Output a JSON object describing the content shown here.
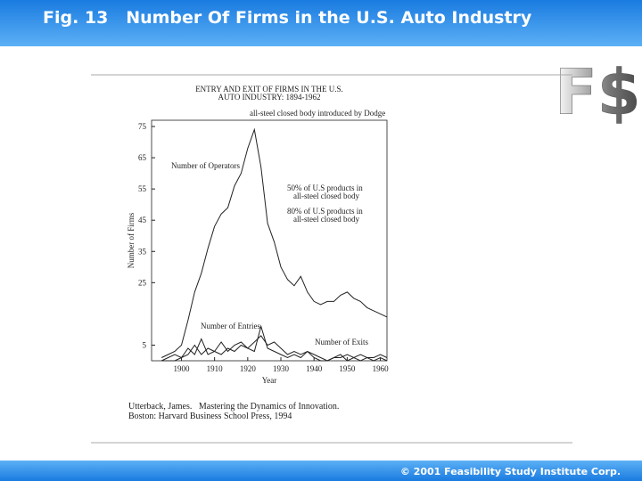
{
  "header": {
    "title": "Fig. 13   Number Of Firms in the U.S. Auto Industry",
    "logo": "F$I"
  },
  "footer": {
    "copyright": "© 2001 Feasibility Study Institute Corp."
  },
  "chart_data": {
    "type": "line",
    "title": [
      "ENTRY AND EXIT OF FIRMS IN THE U.S.",
      "AUTO INDUSTRY: 1894-1962"
    ],
    "x_label": "Year",
    "y_label": "Number of Firms",
    "x": [
      1894,
      1896,
      1898,
      1900,
      1902,
      1904,
      1906,
      1908,
      1910,
      1912,
      1914,
      1916,
      1918,
      1920,
      1922,
      1924,
      1926,
      1928,
      1930,
      1932,
      1934,
      1936,
      1938,
      1940,
      1942,
      1944,
      1946,
      1948,
      1950,
      1952,
      1954,
      1956,
      1958,
      1960,
      1962
    ],
    "series": [
      {
        "name": "Number of Operators",
        "color": "#222222",
        "values": [
          1,
          2,
          3,
          5,
          13,
          22,
          28,
          36,
          43,
          47,
          49,
          56,
          60,
          68,
          74,
          62,
          44,
          38,
          30,
          26,
          24,
          27,
          22,
          19,
          18,
          19,
          19,
          21,
          22,
          20,
          19,
          17,
          16,
          15,
          14
        ]
      },
      {
        "name": "Number of Entries",
        "color": "#222222",
        "values": [
          0,
          1,
          2,
          1,
          4,
          2,
          7,
          2,
          3,
          6,
          3,
          5,
          6,
          4,
          3,
          11,
          4,
          3,
          2,
          1,
          2,
          1,
          3,
          1,
          0,
          0,
          1,
          2,
          0,
          1,
          0,
          1,
          0,
          1,
          0
        ]
      },
      {
        "name": "Number of Exits",
        "color": "#222222",
        "values": [
          0,
          0,
          0,
          1,
          2,
          5,
          2,
          4,
          3,
          2,
          4,
          3,
          5,
          4,
          6,
          8,
          5,
          6,
          4,
          2,
          3,
          2,
          3,
          2,
          1,
          0,
          1,
          1,
          2,
          1,
          2,
          1,
          1,
          2,
          1
        ]
      }
    ],
    "annotations": [
      "all-steel closed body introduced by Dodge",
      "50% of U.S products in",
      "all-steel closed body",
      "80% of U.S products in",
      "all-steel closed body"
    ],
    "source": [
      "Utterback, James.   Mastering the Dynamics of Innovation.",
      "Boston: Harvard Business School Press, 1994"
    ],
    "xlim": [
      1891,
      1962
    ],
    "ylim": [
      0,
      77
    ],
    "xticks": [
      1900,
      1910,
      1920,
      1930,
      1940,
      1950,
      1960
    ],
    "yticks": [
      5,
      25,
      35,
      45,
      55,
      65,
      75
    ]
  }
}
